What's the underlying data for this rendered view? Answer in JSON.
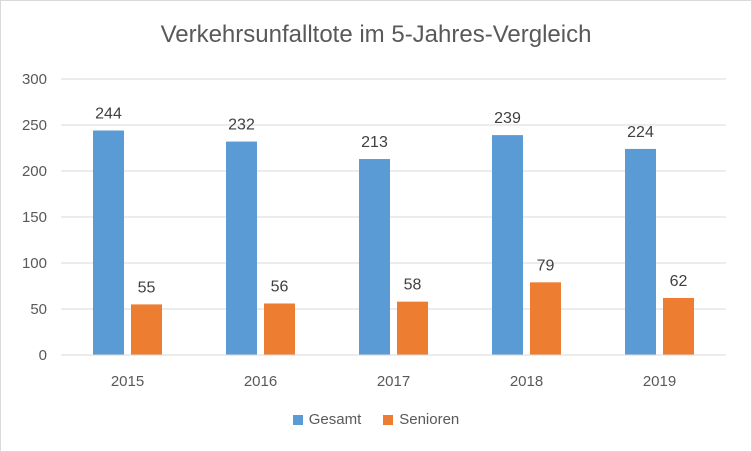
{
  "chart_data": {
    "type": "bar",
    "title": "Verkehrsunfalltote im 5-Jahres-Vergleich",
    "xlabel": "",
    "ylabel": "",
    "categories": [
      "2015",
      "2016",
      "2017",
      "2018",
      "2019"
    ],
    "series": [
      {
        "name": "Gesamt",
        "color": "#5b9bd5",
        "values": [
          244,
          232,
          213,
          239,
          224
        ]
      },
      {
        "name": "Senioren",
        "color": "#ed7d31",
        "values": [
          55,
          56,
          58,
          79,
          62
        ]
      }
    ],
    "ylim": [
      0,
      300
    ],
    "yticks": [
      0,
      50,
      100,
      150,
      200,
      250,
      300
    ],
    "grid": true,
    "legend_position": "bottom"
  }
}
